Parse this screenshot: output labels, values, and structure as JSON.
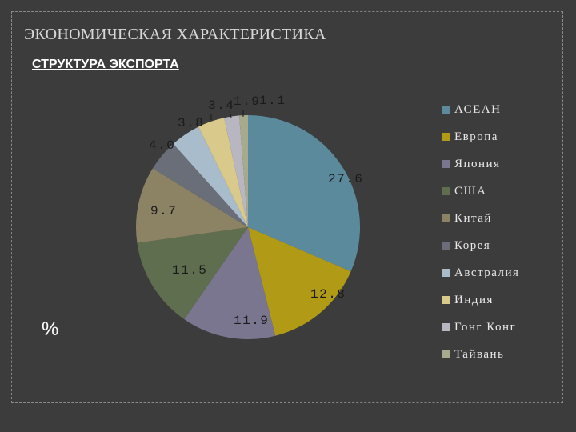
{
  "header": {
    "title": "ЭКОНОМИЧЕСКАЯ ХАРАКТЕРИСТИКА",
    "subtitle": "СТРУКТУРА ЭКСПОРТА",
    "unit": "%"
  },
  "chart_data": {
    "type": "pie",
    "categories": [
      "АСЕАН",
      "Европа",
      "Япония",
      "США",
      "Китай",
      "Корея",
      "Австралия",
      "Индия",
      "Гонг Конг",
      "Тайвань"
    ],
    "values": [
      27.6,
      12.8,
      11.9,
      11.5,
      9.7,
      4.0,
      3.8,
      3.4,
      1.9,
      1.1
    ],
    "labels": [
      "27.6",
      "12.8",
      "11.9",
      "11.5",
      "9.7",
      "4.0",
      "3.8",
      "3.4",
      "1.9",
      "1.1"
    ],
    "colors": [
      "#5b8a9c",
      "#b09a16",
      "#7a7690",
      "#5e6e4e",
      "#8c8264",
      "#6a6e78",
      "#a9bccb",
      "#d9c98a",
      "#b8b6c0",
      "#a7aa8c"
    ],
    "legend_position": "right",
    "title": "",
    "unit": "%"
  }
}
